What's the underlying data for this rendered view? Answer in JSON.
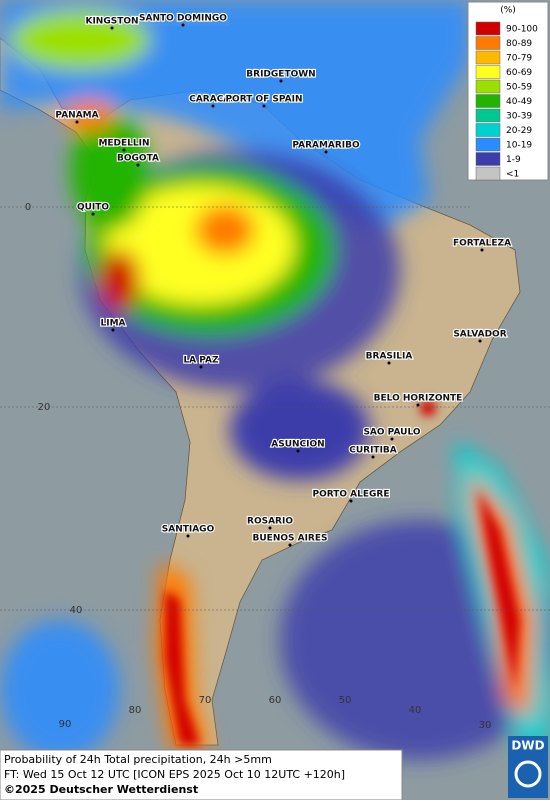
{
  "legend": {
    "unit": "(%)",
    "items": [
      {
        "label": "90-100",
        "color": "#d00000"
      },
      {
        "label": "80-89",
        "color": "#ff7a00"
      },
      {
        "label": "70-79",
        "color": "#ffb800"
      },
      {
        "label": "60-69",
        "color": "#ffff20"
      },
      {
        "label": "50-59",
        "color": "#9be000"
      },
      {
        "label": "40-49",
        "color": "#22b400"
      },
      {
        "label": "30-39",
        "color": "#00c890"
      },
      {
        "label": "20-29",
        "color": "#00d0d0"
      },
      {
        "label": "10-19",
        "color": "#2a8cff"
      },
      {
        "label": "1-9",
        "color": "#3c3caa"
      },
      {
        "label": "<1",
        "color": "#c4c4c4"
      }
    ]
  },
  "cities": [
    "KINGSTON",
    "SANTO DOMINGO",
    "BRIDGETOWN",
    "CARACAS",
    "PORT OF SPAIN",
    "PANAMA",
    "MEDELLIN",
    "BOGOTA",
    "PARAMARIBO",
    "QUITO",
    "FORTALEZA",
    "LIMA",
    "SALVADOR",
    "BRASILIA",
    "LA PAZ",
    "BELO HORIZONTE",
    "SAO PAULO",
    "ASUNCION",
    "CURITIBA",
    "PORTO ALEGRE",
    "SANTIAGO",
    "ROSARIO",
    "BUENOS AIRES"
  ],
  "grid_labels": [
    "0",
    "20",
    "40",
    "90",
    "80",
    "70",
    "60",
    "50",
    "40",
    "30"
  ],
  "footer": {
    "line1": "Probability of 24h Total precipitation, 24h >5mm",
    "line2": "FT: Wed 15 Oct 12 UTC [ICON EPS 2025 Oct 10 12UTC +120h]",
    "copyright": "©2025 Deutscher Wetterdienst",
    "logo": "DWD"
  }
}
